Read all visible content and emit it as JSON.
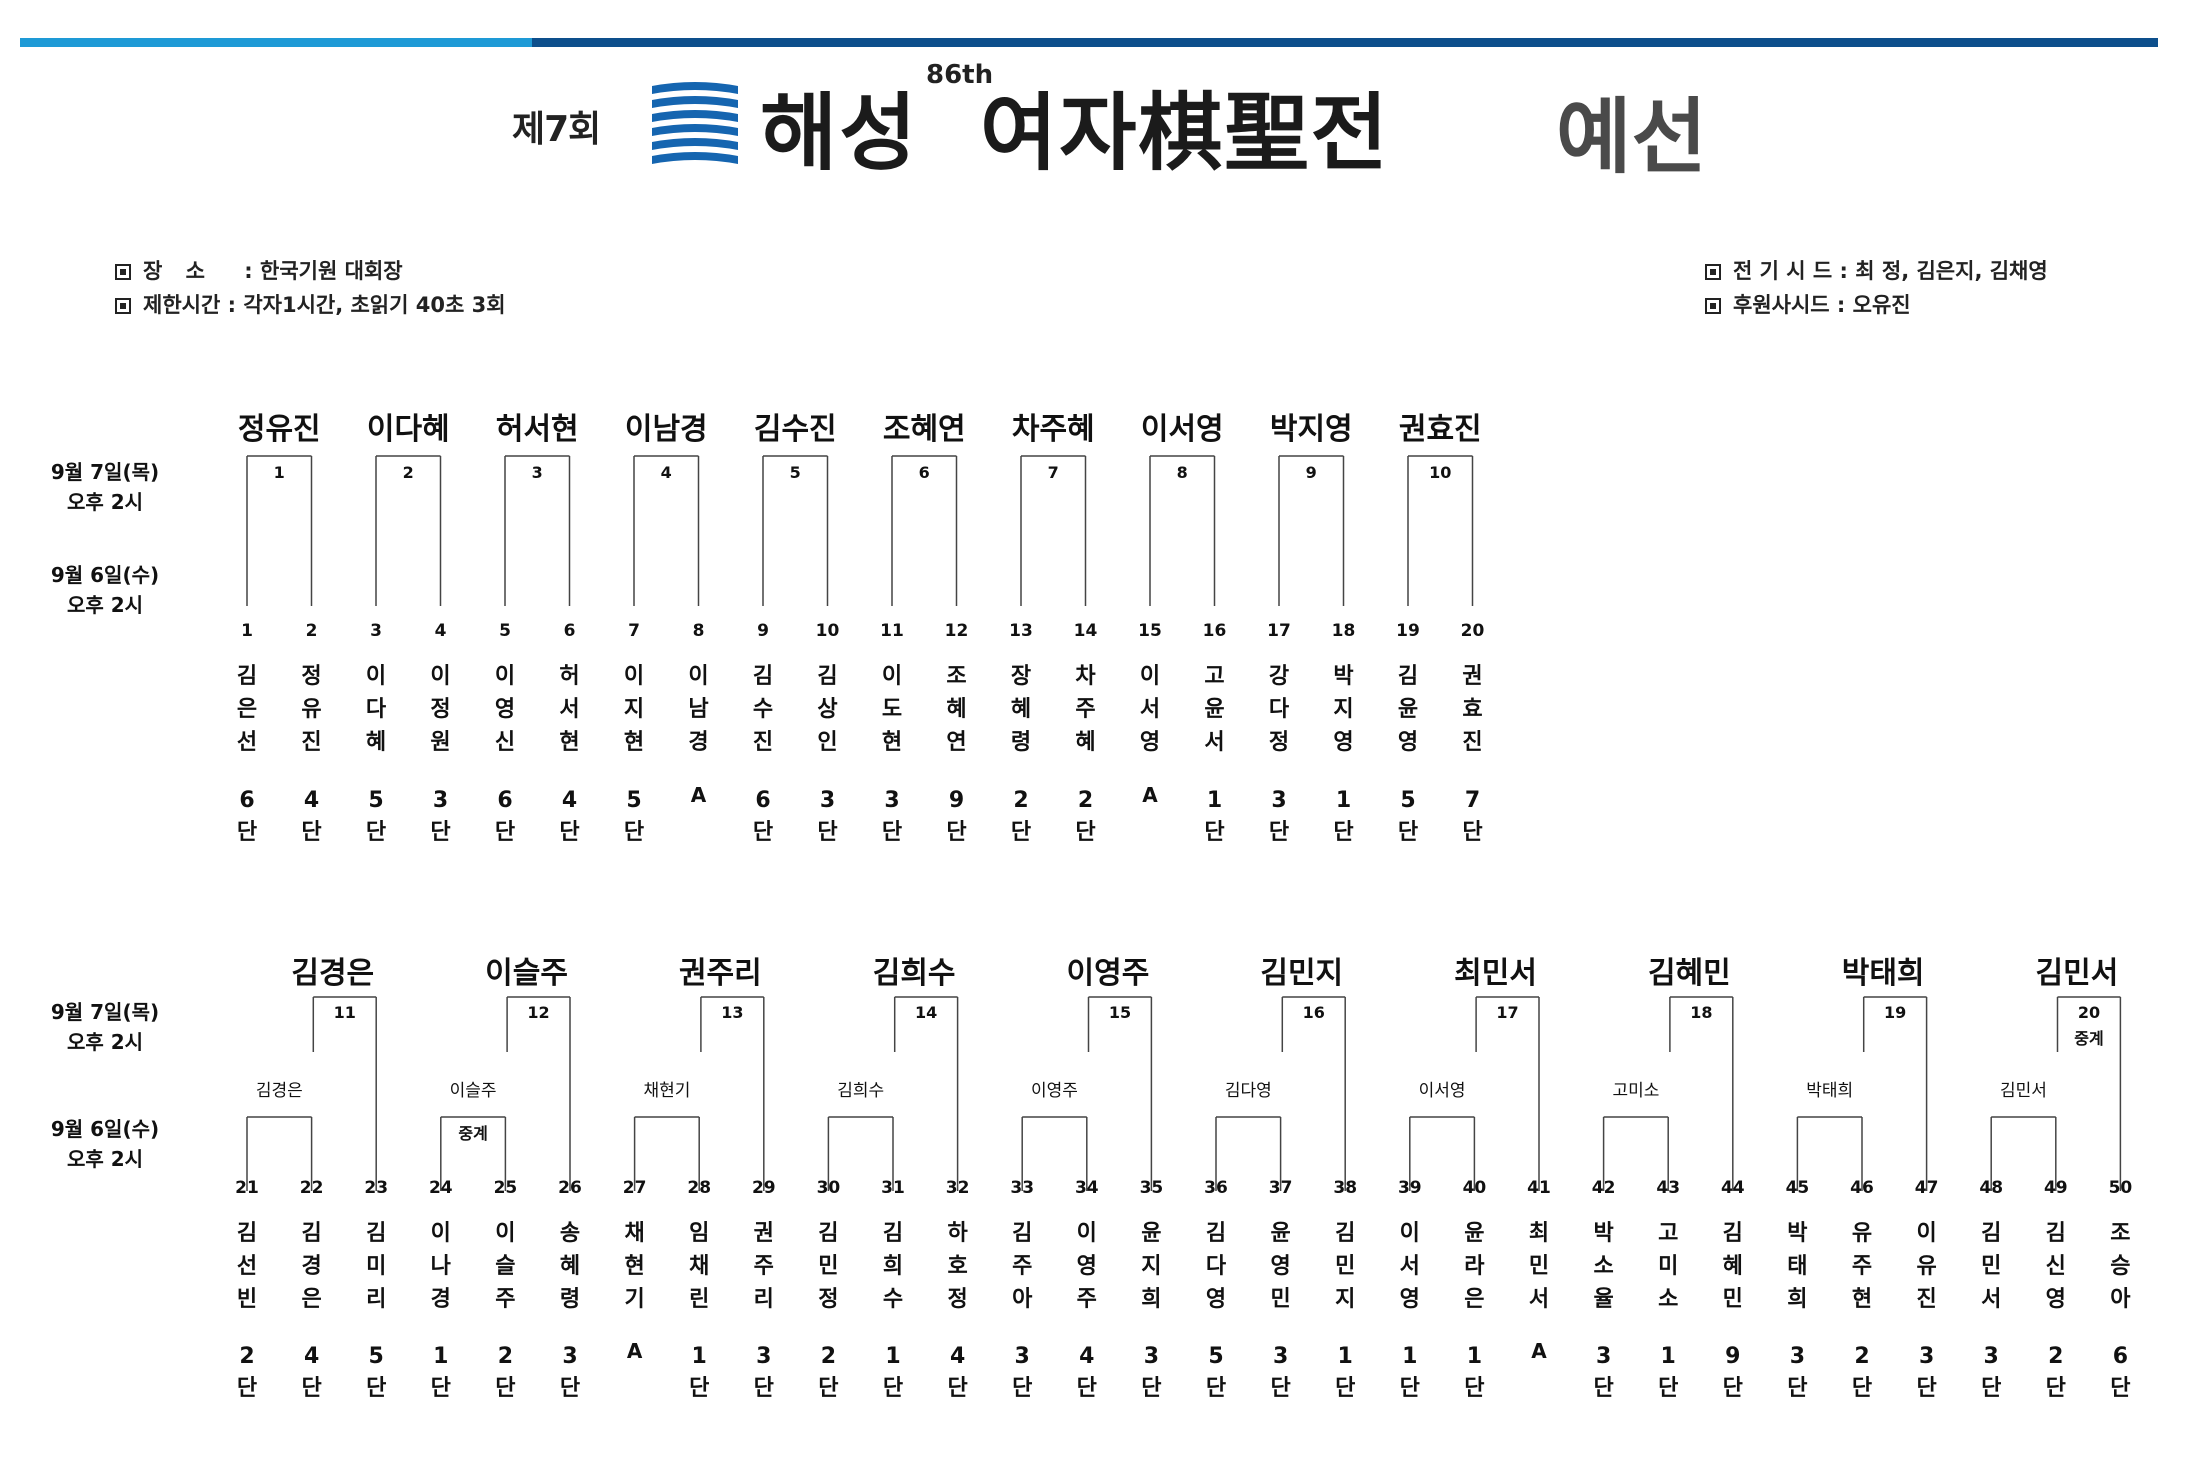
{
  "colors": {
    "accent_light": "#1e9ad6",
    "accent_dark": "#0d4f8c",
    "line": "#444444"
  },
  "header": {
    "round": "제7회",
    "brand": "해성",
    "edition": "86th",
    "tournament_name": "여자棋聖전",
    "suffix": "예선"
  },
  "info": {
    "venue_label": "장 소",
    "venue_value": "한국기원 대회장",
    "time_label": "제한시간",
    "time_value": "각자1시간, 초읽기 40초 3회",
    "seed_label": "전 기 시 드",
    "seed_value": "최 정, 김은지, 김채영",
    "sponsor_label": "후원사시드",
    "sponsor_value": "오유진"
  },
  "schedule": {
    "final_date": "9월 7일(목)",
    "final_time": "오후 2시",
    "first_date": "9월 6일(수)",
    "first_time": "오후 2시"
  },
  "section1": {
    "groups": [
      {
        "num": "1",
        "winner": "정유진",
        "players": [
          {
            "no": "1",
            "name": "김은선",
            "rank": "6",
            "unit": "단"
          },
          {
            "no": "2",
            "name": "정유진",
            "rank": "4",
            "unit": "단"
          }
        ]
      },
      {
        "num": "2",
        "winner": "이다혜",
        "players": [
          {
            "no": "3",
            "name": "이다혜",
            "rank": "5",
            "unit": "단"
          },
          {
            "no": "4",
            "name": "이정원",
            "rank": "3",
            "unit": "단"
          }
        ]
      },
      {
        "num": "3",
        "winner": "허서현",
        "players": [
          {
            "no": "5",
            "name": "이영신",
            "rank": "6",
            "unit": "단"
          },
          {
            "no": "6",
            "name": "허서현",
            "rank": "4",
            "unit": "단"
          }
        ]
      },
      {
        "num": "4",
        "winner": "이남경",
        "players": [
          {
            "no": "7",
            "name": "이지현",
            "rank": "5",
            "unit": "단"
          },
          {
            "no": "8",
            "name": "이남경",
            "rank": "A",
            "unit": ""
          }
        ]
      },
      {
        "num": "5",
        "winner": "김수진",
        "players": [
          {
            "no": "9",
            "name": "김수진",
            "rank": "6",
            "unit": "단"
          },
          {
            "no": "10",
            "name": "김상인",
            "rank": "3",
            "unit": "단"
          }
        ]
      },
      {
        "num": "6",
        "winner": "조혜연",
        "players": [
          {
            "no": "11",
            "name": "이도현",
            "rank": "3",
            "unit": "단"
          },
          {
            "no": "12",
            "name": "조혜연",
            "rank": "9",
            "unit": "단"
          }
        ]
      },
      {
        "num": "7",
        "winner": "차주혜",
        "players": [
          {
            "no": "13",
            "name": "장혜령",
            "rank": "2",
            "unit": "단"
          },
          {
            "no": "14",
            "name": "차주혜",
            "rank": "2",
            "unit": "단"
          }
        ]
      },
      {
        "num": "8",
        "winner": "이서영",
        "players": [
          {
            "no": "15",
            "name": "이서영",
            "rank": "A",
            "unit": ""
          },
          {
            "no": "16",
            "name": "고윤서",
            "rank": "1",
            "unit": "단"
          }
        ]
      },
      {
        "num": "9",
        "winner": "박지영",
        "players": [
          {
            "no": "17",
            "name": "강다정",
            "rank": "3",
            "unit": "단"
          },
          {
            "no": "18",
            "name": "박지영",
            "rank": "1",
            "unit": "단"
          }
        ]
      },
      {
        "num": "10",
        "winner": "권효진",
        "players": [
          {
            "no": "19",
            "name": "김윤영",
            "rank": "5",
            "unit": "단"
          },
          {
            "no": "20",
            "name": "권효진",
            "rank": "7",
            "unit": "단"
          }
        ]
      }
    ]
  },
  "section2": {
    "groups": [
      {
        "num": "11",
        "winner": "김경은",
        "semi": "김경은",
        "note": "",
        "semi_note": "",
        "players": [
          {
            "no": "21",
            "name": "김선빈",
            "rank": "2",
            "unit": "단"
          },
          {
            "no": "22",
            "name": "김경은",
            "rank": "4",
            "unit": "단"
          },
          {
            "no": "23",
            "name": "김미리",
            "rank": "5",
            "unit": "단"
          }
        ]
      },
      {
        "num": "12",
        "winner": "이슬주",
        "semi": "이슬주",
        "note": "",
        "semi_note": "중계",
        "players": [
          {
            "no": "24",
            "name": "이나경",
            "rank": "1",
            "unit": "단"
          },
          {
            "no": "25",
            "name": "이슬주",
            "rank": "2",
            "unit": "단"
          },
          {
            "no": "26",
            "name": "송혜령",
            "rank": "3",
            "unit": "단"
          }
        ]
      },
      {
        "num": "13",
        "winner": "권주리",
        "semi": "채현기",
        "note": "",
        "semi_note": "",
        "players": [
          {
            "no": "27",
            "name": "채현기",
            "rank": "A",
            "unit": ""
          },
          {
            "no": "28",
            "name": "임채린",
            "rank": "1",
            "unit": "단"
          },
          {
            "no": "29",
            "name": "권주리",
            "rank": "3",
            "unit": "단"
          }
        ]
      },
      {
        "num": "14",
        "winner": "김희수",
        "semi": "김희수",
        "note": "",
        "semi_note": "",
        "players": [
          {
            "no": "30",
            "name": "김민정",
            "rank": "2",
            "unit": "단"
          },
          {
            "no": "31",
            "name": "김희수",
            "rank": "1",
            "unit": "단"
          },
          {
            "no": "32",
            "name": "하호정",
            "rank": "4",
            "unit": "단"
          }
        ]
      },
      {
        "num": "15",
        "winner": "이영주",
        "semi": "이영주",
        "note": "",
        "semi_note": "",
        "players": [
          {
            "no": "33",
            "name": "김주아",
            "rank": "3",
            "unit": "단"
          },
          {
            "no": "34",
            "name": "이영주",
            "rank": "4",
            "unit": "단"
          },
          {
            "no": "35",
            "name": "윤지희",
            "rank": "3",
            "unit": "단"
          }
        ]
      },
      {
        "num": "16",
        "winner": "김민지",
        "semi": "김다영",
        "note": "",
        "semi_note": "",
        "players": [
          {
            "no": "36",
            "name": "김다영",
            "rank": "5",
            "unit": "단"
          },
          {
            "no": "37",
            "name": "윤영민",
            "rank": "3",
            "unit": "단"
          },
          {
            "no": "38",
            "name": "김민지",
            "rank": "1",
            "unit": "단"
          }
        ]
      },
      {
        "num": "17",
        "winner": "최민서",
        "semi": "이서영",
        "note": "",
        "semi_note": "",
        "players": [
          {
            "no": "39",
            "name": "이서영",
            "rank": "1",
            "unit": "단"
          },
          {
            "no": "40",
            "name": "윤라은",
            "rank": "1",
            "unit": "단"
          },
          {
            "no": "41",
            "name": "최민서",
            "rank": "A",
            "unit": ""
          }
        ]
      },
      {
        "num": "18",
        "winner": "김혜민",
        "semi": "고미소",
        "note": "",
        "semi_note": "",
        "players": [
          {
            "no": "42",
            "name": "박소율",
            "rank": "3",
            "unit": "단"
          },
          {
            "no": "43",
            "name": "고미소",
            "rank": "1",
            "unit": "단"
          },
          {
            "no": "44",
            "name": "김혜민",
            "rank": "9",
            "unit": "단"
          }
        ]
      },
      {
        "num": "19",
        "winner": "박태희",
        "semi": "박태희",
        "note": "",
        "semi_note": "",
        "players": [
          {
            "no": "45",
            "name": "박태희",
            "rank": "3",
            "unit": "단"
          },
          {
            "no": "46",
            "name": "유주현",
            "rank": "2",
            "unit": "단"
          },
          {
            "no": "47",
            "name": "이유진",
            "rank": "3",
            "unit": "단"
          }
        ]
      },
      {
        "num": "20",
        "winner": "김민서",
        "semi": "김민서",
        "note": "중계",
        "semi_note": "",
        "players": [
          {
            "no": "48",
            "name": "김민서",
            "rank": "3",
            "unit": "단"
          },
          {
            "no": "49",
            "name": "김신영",
            "rank": "2",
            "unit": "단"
          },
          {
            "no": "50",
            "name": "조승아",
            "rank": "6",
            "unit": "단"
          }
        ]
      }
    ]
  }
}
